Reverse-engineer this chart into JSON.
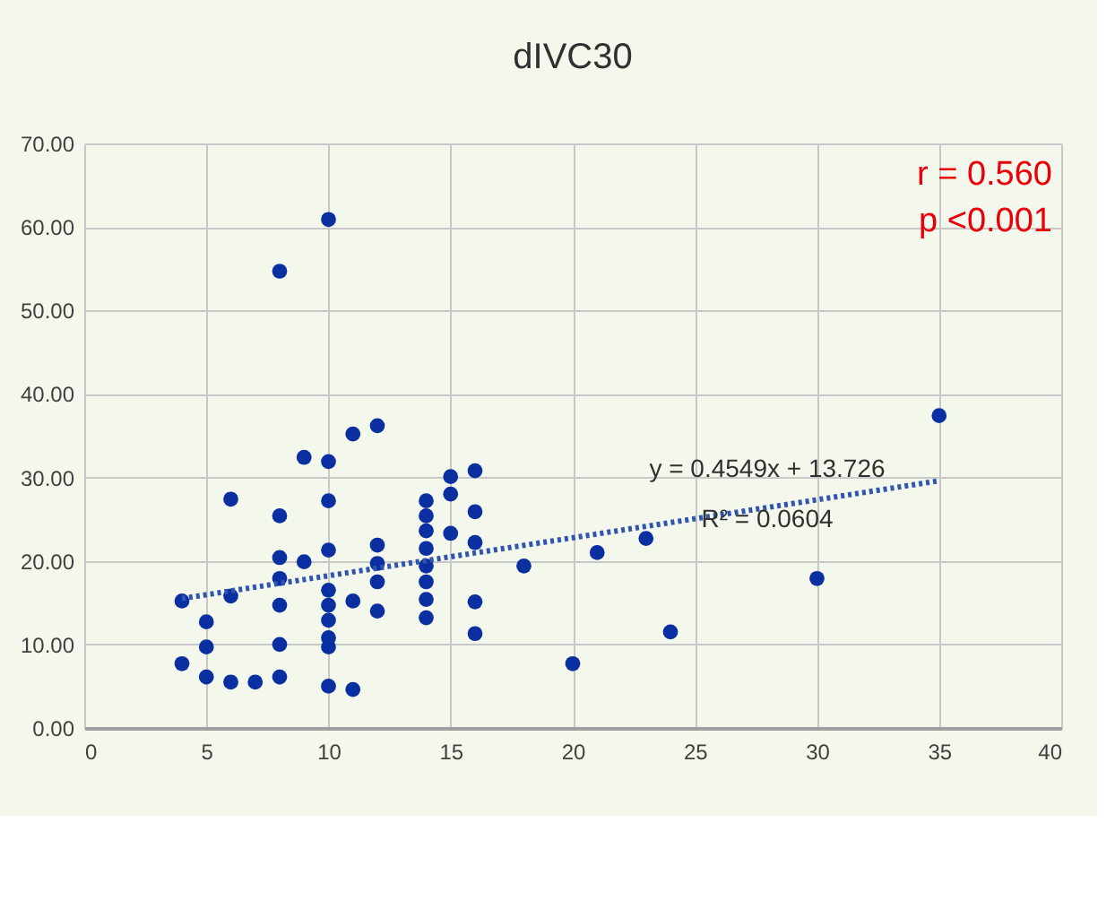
{
  "chart_data": {
    "type": "scatter",
    "title": "dIVC30",
    "xlim": [
      0,
      40
    ],
    "xticks": [
      0,
      5,
      10,
      15,
      20,
      25,
      30,
      35,
      40
    ],
    "ylim": [
      0,
      70
    ],
    "yticks": [
      {
        "value": 0,
        "label": "0.00"
      },
      {
        "value": 10,
        "label": "10.00"
      },
      {
        "value": 20,
        "label": "20.00"
      },
      {
        "value": 30,
        "label": "30.00"
      },
      {
        "value": 40,
        "label": "40.00"
      },
      {
        "value": 50,
        "label": "50.00"
      },
      {
        "value": 60,
        "label": "60.00"
      },
      {
        "value": 70,
        "label": "70.00"
      }
    ],
    "grid": true,
    "legend": false,
    "marker": "circle",
    "series": [
      {
        "type": "scatter",
        "color": "#0a2fa0",
        "x": [
          4,
          4,
          5,
          5,
          5,
          6,
          6,
          6,
          7,
          8,
          8,
          8,
          8,
          8,
          8,
          8,
          9,
          9,
          10,
          10,
          10,
          10,
          10,
          10,
          10,
          10,
          10,
          10,
          11,
          11,
          11,
          12,
          12,
          12,
          12,
          12,
          14,
          14,
          14,
          14,
          14,
          14,
          14,
          14,
          15,
          15,
          15,
          16,
          16,
          16,
          16,
          16,
          18,
          20,
          21,
          23,
          24,
          30,
          35
        ],
        "values": [
          15.2,
          7.7,
          12.7,
          9.7,
          6.1,
          27.4,
          15.8,
          5.5,
          5.5,
          54.7,
          25.4,
          20.4,
          17.9,
          14.7,
          10,
          6.1,
          32.4,
          19.9,
          60.9,
          31.9,
          27.2,
          21.3,
          16.5,
          14.7,
          12.9,
          10.8,
          9.7,
          5,
          35.2,
          15.2,
          4.6,
          36.2,
          21.9,
          19.7,
          17.5,
          14,
          27.2,
          25.4,
          23.6,
          21.5,
          19.4,
          17.5,
          15.4,
          13.2,
          30.1,
          28,
          23.3,
          30.8,
          25.9,
          22.2,
          15.1,
          11.3,
          19.4,
          7.7,
          21,
          22.7,
          11.5,
          17.9,
          37.4
        ]
      },
      {
        "type": "line",
        "color": "#2f55b0",
        "line_style": "dotted",
        "marker": "none",
        "x": [
          4,
          35
        ],
        "values": [
          15.5,
          29.6
        ]
      }
    ],
    "annotations": [
      "y = 0.4549x + 13.726",
      "R² = 0.0604",
      "r = 0.560",
      "p <0.001"
    ]
  }
}
